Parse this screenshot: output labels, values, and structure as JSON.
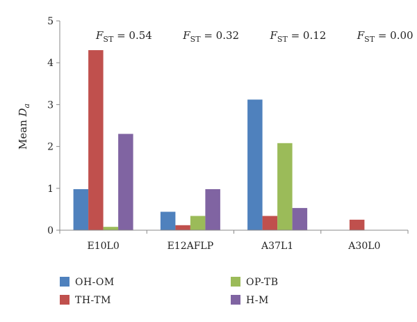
{
  "chart_data": {
    "type": "bar",
    "categories": [
      "E10L0",
      "E12AFLP",
      "A37L1",
      "A30L0"
    ],
    "ylabel": {
      "base": "Mean ",
      "var": "D",
      "sub": "a"
    },
    "ylim": [
      0,
      5
    ],
    "yticks": [
      0,
      1,
      2,
      3,
      4,
      5
    ],
    "grid": false,
    "legend_position": "bottom",
    "series": [
      {
        "name": "OH-OM",
        "color": "#4f81bd",
        "values": [
          0.98,
          0.44,
          3.12,
          0.0
        ]
      },
      {
        "name": "TH-TM",
        "color": "#c0504d",
        "values": [
          4.3,
          0.12,
          0.34,
          0.25
        ]
      },
      {
        "name": "OP-TB",
        "color": "#9bbb59",
        "values": [
          0.08,
          0.34,
          2.08,
          0.0
        ]
      },
      {
        "name": "H-M",
        "color": "#8064a2",
        "values": [
          2.3,
          0.98,
          0.53,
          0.0
        ]
      }
    ],
    "annotations": [
      {
        "category": "E10L0",
        "label_var": "F",
        "label_sub": "ST",
        "text": " = 0.54"
      },
      {
        "category": "E12AFLP",
        "label_var": "F",
        "label_sub": "ST",
        "text": " = 0.32"
      },
      {
        "category": "A37L1",
        "label_var": "F",
        "label_sub": "ST",
        "text": " = 0.12"
      },
      {
        "category": "A30L0",
        "label_var": "F",
        "label_sub": "ST",
        "text": " = 0.00"
      }
    ]
  }
}
